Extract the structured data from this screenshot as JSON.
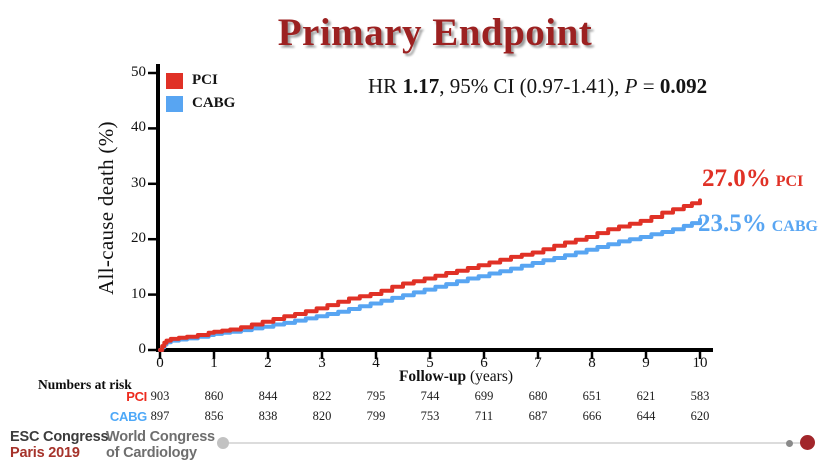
{
  "title": "Primary Endpoint",
  "stats": {
    "hr_prefix": "HR ",
    "hr_value": "1.17",
    "ci_text": ", 95% CI (0.97-1.41), ",
    "p_label": "P",
    "p_eq": " = ",
    "p_value": "0.092"
  },
  "legend": {
    "pci_label": "PCI",
    "cabg_label": "CABG"
  },
  "colors": {
    "pci": "#e03126",
    "cabg": "#58a5f2",
    "title_red": "#9c2121",
    "axis": "#000000",
    "nar_pci_label": "#ed2a1d",
    "nar_cabg_label": "#4da8f8",
    "footer_gray": "#6e6e6e",
    "footer_dark": "#3c3c3c",
    "footer_red": "#a6332b",
    "scrubber_handle": "#c2c2c2",
    "scrubber_dot": "#8a8a8a",
    "scrubber_end": "#a2262b"
  },
  "chart_data": {
    "type": "line",
    "title": "Primary Endpoint",
    "xlabel_bold": "Follow-up",
    "xlabel_rest": " (years)",
    "ylabel": "All-cause death (%)",
    "xlim": [
      0,
      10
    ],
    "ylim": [
      0,
      50
    ],
    "xticks": [
      0,
      1,
      2,
      3,
      4,
      5,
      6,
      7,
      8,
      9,
      10
    ],
    "yticks": [
      0,
      10,
      20,
      30,
      40,
      50
    ],
    "grid": false,
    "legend_position": "top-left",
    "series": [
      {
        "name": "CABG",
        "color": "#58a5f2",
        "final_value_label": "23.5%",
        "final_name_label": "CABG",
        "points": [
          [
            0,
            0
          ],
          [
            0.04,
            0.5
          ],
          [
            0.08,
            1.0
          ],
          [
            0.12,
            1.4
          ],
          [
            0.2,
            1.7
          ],
          [
            0.35,
            1.9
          ],
          [
            0.5,
            2.1
          ],
          [
            0.7,
            2.4
          ],
          [
            0.9,
            2.7
          ],
          [
            1.0,
            2.9
          ],
          [
            1.15,
            3.1
          ],
          [
            1.3,
            3.3
          ],
          [
            1.5,
            3.6
          ],
          [
            1.7,
            3.9
          ],
          [
            1.9,
            4.2
          ],
          [
            2.1,
            4.6
          ],
          [
            2.3,
            4.9
          ],
          [
            2.5,
            5.3
          ],
          [
            2.7,
            5.7
          ],
          [
            2.9,
            6.1
          ],
          [
            3.1,
            6.5
          ],
          [
            3.3,
            6.9
          ],
          [
            3.5,
            7.4
          ],
          [
            3.7,
            7.9
          ],
          [
            3.9,
            8.4
          ],
          [
            4.1,
            8.9
          ],
          [
            4.3,
            9.4
          ],
          [
            4.5,
            9.9
          ],
          [
            4.7,
            10.4
          ],
          [
            4.9,
            10.9
          ],
          [
            5.1,
            11.4
          ],
          [
            5.3,
            11.9
          ],
          [
            5.5,
            12.4
          ],
          [
            5.7,
            12.9
          ],
          [
            5.9,
            13.3
          ],
          [
            6.1,
            13.8
          ],
          [
            6.3,
            14.2
          ],
          [
            6.5,
            14.7
          ],
          [
            6.7,
            15.2
          ],
          [
            6.9,
            15.7
          ],
          [
            7.1,
            16.2
          ],
          [
            7.3,
            16.6
          ],
          [
            7.5,
            17.1
          ],
          [
            7.7,
            17.6
          ],
          [
            7.9,
            18.1
          ],
          [
            8.1,
            18.6
          ],
          [
            8.3,
            19.1
          ],
          [
            8.5,
            19.6
          ],
          [
            8.7,
            20.0
          ],
          [
            8.9,
            20.4
          ],
          [
            9.1,
            20.9
          ],
          [
            9.3,
            21.3
          ],
          [
            9.5,
            21.8
          ],
          [
            9.7,
            22.4
          ],
          [
            9.85,
            22.9
          ],
          [
            10,
            23.5
          ]
        ]
      },
      {
        "name": "PCI",
        "color": "#e03126",
        "final_value_label": "27.0%",
        "final_name_label": "PCI",
        "points": [
          [
            0,
            0
          ],
          [
            0.04,
            0.7
          ],
          [
            0.08,
            1.3
          ],
          [
            0.12,
            1.7
          ],
          [
            0.2,
            2.0
          ],
          [
            0.35,
            2.2
          ],
          [
            0.5,
            2.4
          ],
          [
            0.7,
            2.7
          ],
          [
            0.9,
            3.1
          ],
          [
            1.0,
            3.3
          ],
          [
            1.15,
            3.5
          ],
          [
            1.3,
            3.7
          ],
          [
            1.5,
            4.1
          ],
          [
            1.7,
            4.6
          ],
          [
            1.9,
            5.1
          ],
          [
            2.1,
            5.6
          ],
          [
            2.3,
            6.1
          ],
          [
            2.5,
            6.5
          ],
          [
            2.7,
            7.0
          ],
          [
            2.9,
            7.5
          ],
          [
            3.1,
            8.1
          ],
          [
            3.3,
            8.7
          ],
          [
            3.5,
            9.3
          ],
          [
            3.7,
            9.7
          ],
          [
            3.9,
            10.1
          ],
          [
            4.1,
            10.7
          ],
          [
            4.3,
            11.4
          ],
          [
            4.5,
            12.0
          ],
          [
            4.7,
            12.4
          ],
          [
            4.9,
            12.9
          ],
          [
            5.1,
            13.4
          ],
          [
            5.3,
            13.9
          ],
          [
            5.5,
            14.3
          ],
          [
            5.7,
            14.8
          ],
          [
            5.9,
            15.3
          ],
          [
            6.1,
            15.8
          ],
          [
            6.3,
            16.3
          ],
          [
            6.5,
            16.8
          ],
          [
            6.7,
            17.2
          ],
          [
            6.9,
            17.6
          ],
          [
            7.1,
            18.2
          ],
          [
            7.3,
            18.8
          ],
          [
            7.5,
            19.4
          ],
          [
            7.7,
            19.9
          ],
          [
            7.9,
            20.4
          ],
          [
            8.1,
            21.1
          ],
          [
            8.3,
            21.8
          ],
          [
            8.5,
            22.3
          ],
          [
            8.7,
            22.8
          ],
          [
            8.9,
            23.3
          ],
          [
            9.1,
            24.0
          ],
          [
            9.3,
            24.8
          ],
          [
            9.5,
            25.4
          ],
          [
            9.7,
            26.0
          ],
          [
            9.85,
            26.5
          ],
          [
            10,
            27.0
          ]
        ]
      }
    ]
  },
  "numbers_at_risk": {
    "title": "Numbers at risk",
    "rows": [
      {
        "label": "PCI",
        "color": "#ed2a1d",
        "values": [
          "903",
          "860",
          "844",
          "822",
          "795",
          "744",
          "699",
          "680",
          "651",
          "621",
          "583"
        ]
      },
      {
        "label": "CABG",
        "color": "#4da8f8",
        "values": [
          "897",
          "856",
          "838",
          "820",
          "799",
          "753",
          "711",
          "687",
          "666",
          "644",
          "620"
        ]
      }
    ]
  },
  "footer": {
    "congress_line1": "ESC Congress",
    "congress_line2": "Paris 2019",
    "org_line1": "World Congress",
    "org_line2": "of Cardiology"
  }
}
